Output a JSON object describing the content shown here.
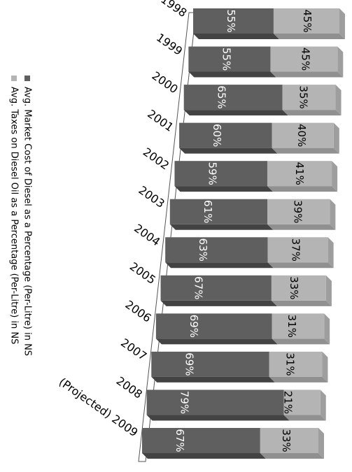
{
  "chart_data": {
    "type": "bar",
    "stacked": true,
    "orientation": "horizontal",
    "three_d": true,
    "categories": [
      "1998",
      "1999",
      "2000",
      "2001",
      "2002",
      "2003",
      "2004",
      "2005",
      "2006",
      "2007",
      "2008",
      "(Projected) 2009"
    ],
    "series": [
      {
        "name": "Avg. Market Cost of Diesel as a Percentage (Per-Litre) in NS",
        "color": "#5f5f5f",
        "values": [
          55,
          55,
          65,
          60,
          59,
          61,
          63,
          67,
          69,
          69,
          79,
          67
        ],
        "labels": [
          "55%",
          "55%",
          "65%",
          "60%",
          "59%",
          "61%",
          "63%",
          "67%",
          "69%",
          "69%",
          "79%",
          "67%"
        ]
      },
      {
        "name": "Avg. Taxes on Diesel Oil as a Percentage (Per-Litre) in NS",
        "color": "#b4b4b4",
        "values": [
          45,
          45,
          35,
          40,
          41,
          39,
          37,
          33,
          31,
          31,
          21,
          33
        ],
        "labels": [
          "45%",
          "45%",
          "35%",
          "40%",
          "41%",
          "39%",
          "37%",
          "33%",
          "31%",
          "31%",
          "21%",
          "33%"
        ]
      }
    ],
    "xlim": [
      0,
      100
    ],
    "grid": false,
    "legend_position": "left"
  }
}
